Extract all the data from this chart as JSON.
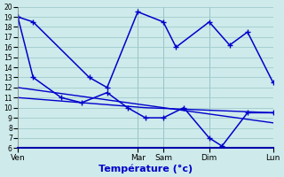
{
  "xlabel": "Température (°c)",
  "background_color": "#ceeaea",
  "grid_color": "#a0cccc",
  "line_color": "#0000cc",
  "ylim": [
    6,
    20
  ],
  "yticks": [
    6,
    7,
    8,
    9,
    10,
    11,
    12,
    13,
    14,
    15,
    16,
    17,
    18,
    19,
    20
  ],
  "day_labels": [
    "Ven",
    "Mar",
    "Sam",
    "Dim",
    "Lun"
  ],
  "day_positions": [
    0,
    4.7,
    5.7,
    7.5,
    10
  ],
  "xmin": 0,
  "xmax": 10,
  "line1_x": [
    0,
    0.6,
    2.8,
    3.5,
    4.7,
    5.7,
    6.2,
    7.5,
    8.3,
    9.0,
    10.0
  ],
  "line1_y": [
    19,
    18.5,
    13,
    12,
    19.5,
    18.5,
    16,
    18.5,
    16.2,
    17.5,
    12.5
  ],
  "line2_x": [
    0,
    0.6,
    1.7,
    2.5,
    3.5,
    4.3,
    5.0,
    5.7,
    6.5,
    7.5,
    8.0,
    9.0,
    10.0
  ],
  "line2_y": [
    19,
    13,
    11,
    10.5,
    11.5,
    10.0,
    9.0,
    9.0,
    10.0,
    7.0,
    6.2,
    9.5,
    9.5
  ],
  "line3_x": [
    0,
    5.0,
    10.0
  ],
  "line3_y": [
    11,
    10,
    9.5
  ],
  "line4_x": [
    0,
    10.0
  ],
  "line4_y": [
    12,
    8.5
  ]
}
